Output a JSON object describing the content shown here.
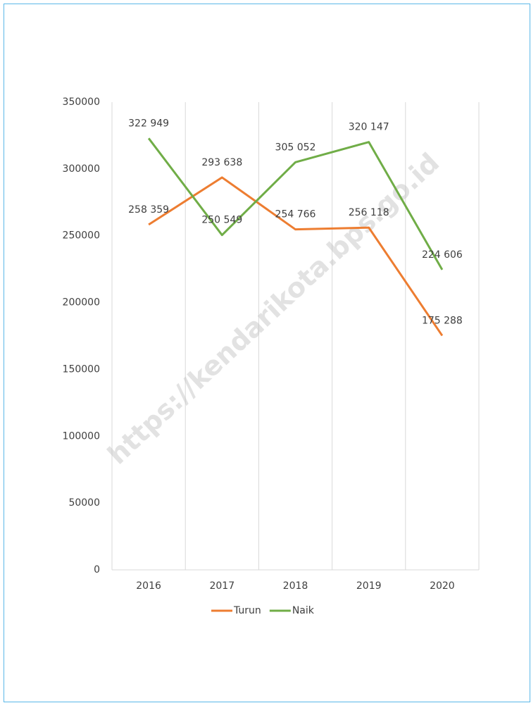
{
  "chart_data": {
    "type": "line",
    "categories": [
      "2016",
      "2017",
      "2018",
      "2019",
      "2020"
    ],
    "series": [
      {
        "name": "Turun",
        "color": "#ed7d31",
        "values": [
          258359,
          293638,
          254766,
          256118,
          175288
        ],
        "value_labels": [
          "258 359",
          "293 638",
          "254 766",
          "256 118",
          "175 288"
        ]
      },
      {
        "name": "Naik",
        "color": "#70ad47",
        "values": [
          322949,
          250549,
          305052,
          320147,
          224606
        ],
        "value_labels": [
          "322 949",
          "250 549",
          "305 052",
          "320 147",
          "224 606"
        ]
      }
    ],
    "ylim": [
      0,
      350000
    ],
    "yticks": [
      0,
      50000,
      100000,
      150000,
      200000,
      250000,
      300000,
      350000
    ],
    "grid": true,
    "legend": "bottom",
    "watermark": "https://kendarikota.bps.go.id"
  }
}
